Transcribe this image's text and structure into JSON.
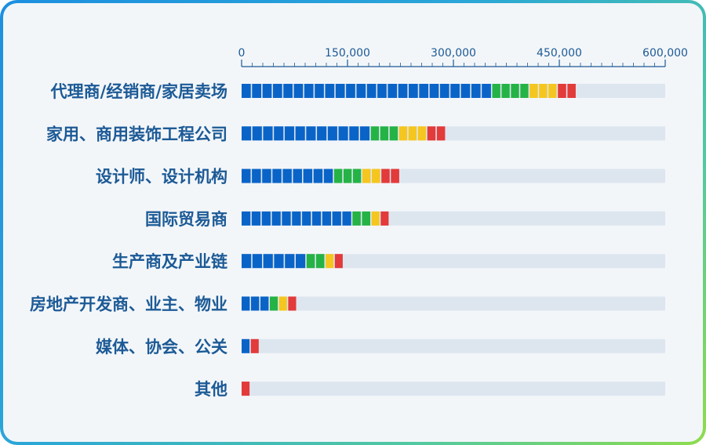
{
  "chart_data": {
    "type": "bar",
    "stacked": true,
    "categories": [
      "代理商/经销商/家居卖场",
      "家用、商用装饰工程公司",
      "设计师、设计机构",
      "国际贸易商",
      "生产商及产业链",
      "房地产开发商、业主、物业",
      "媒体、协会、公关",
      "其他"
    ],
    "series": [
      {
        "color": "#0a64c8",
        "values": [
          355000,
          183000,
          131000,
          157000,
          92000,
          40000,
          13000,
          0
        ]
      },
      {
        "color": "#25b346",
        "values": [
          53000,
          40000,
          40000,
          27000,
          27000,
          13000,
          0,
          0
        ]
      },
      {
        "color": "#f5c61f",
        "values": [
          40000,
          40000,
          27000,
          13000,
          13000,
          13000,
          0,
          0
        ]
      },
      {
        "color": "#e33a3a",
        "values": [
          27000,
          27000,
          27000,
          13000,
          13000,
          13000,
          13000,
          13000
        ]
      }
    ],
    "track_max": 600000,
    "xlim": [
      0,
      600000
    ],
    "xticks": [
      0,
      150000,
      300000,
      450000,
      600000
    ],
    "xtick_labels": [
      "0",
      "150,000",
      "300,000",
      "450,000",
      "600,000"
    ],
    "axis_position": "top",
    "grid": false,
    "legend": false,
    "background_track_color": "#dde6ef",
    "axis_color": "#1c5a96"
  }
}
